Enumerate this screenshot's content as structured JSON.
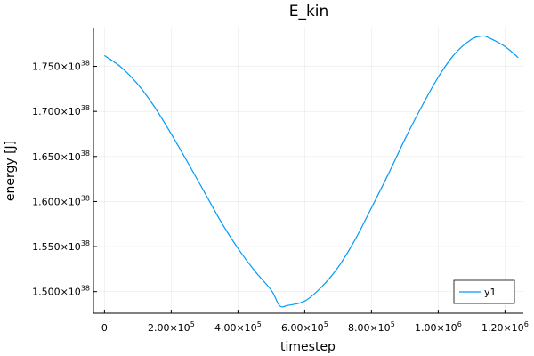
{
  "chart_data": {
    "type": "line",
    "title": "E_kin",
    "xlabel": "timestep",
    "ylabel": "energy [J]",
    "xlim": [
      -33000,
      1255000
    ],
    "ylim": [
      1.476e+38,
      1.793e+38
    ],
    "grid": true,
    "legend_position": "bottom-right",
    "x_ticks": [
      {
        "value": 0,
        "mantissa": "0",
        "exponent": ""
      },
      {
        "value": 200000,
        "mantissa": "2.00×10",
        "exponent": "5"
      },
      {
        "value": 400000,
        "mantissa": "4.00×10",
        "exponent": "5"
      },
      {
        "value": 600000,
        "mantissa": "6.00×10",
        "exponent": "5"
      },
      {
        "value": 800000,
        "mantissa": "8.00×10",
        "exponent": "5"
      },
      {
        "value": 1000000,
        "mantissa": "1.00×10",
        "exponent": "6"
      },
      {
        "value": 1200000,
        "mantissa": "1.20×10",
        "exponent": "6"
      }
    ],
    "y_ticks": [
      {
        "value": 1.5e+38,
        "mantissa": "1.500×10",
        "exponent": "38"
      },
      {
        "value": 1.55e+38,
        "mantissa": "1.550×10",
        "exponent": "38"
      },
      {
        "value": 1.6e+38,
        "mantissa": "1.600×10",
        "exponent": "38"
      },
      {
        "value": 1.65e+38,
        "mantissa": "1.650×10",
        "exponent": "38"
      },
      {
        "value": 1.7e+38,
        "mantissa": "1.700×10",
        "exponent": "38"
      },
      {
        "value": 1.75e+38,
        "mantissa": "1.750×10",
        "exponent": "38"
      }
    ],
    "series": [
      {
        "name": "y1",
        "color": "#009af9",
        "x": [
          0,
          50000,
          100000,
          150000,
          200000,
          250000,
          300000,
          350000,
          400000,
          450000,
          500000,
          525000,
          550000,
          600000,
          650000,
          700000,
          750000,
          800000,
          850000,
          900000,
          950000,
          1000000,
          1050000,
          1100000,
          1130000,
          1150000,
          1200000,
          1240000
        ],
        "y": [
          1.762e+38,
          1.749e+38,
          1.73e+38,
          1.705e+38,
          1.675e+38,
          1.643e+38,
          1.61e+38,
          1.577e+38,
          1.548e+38,
          1.523e+38,
          1.5015e+38,
          1.4843e+38,
          1.4848e+38,
          1.4895e+38,
          1.505e+38,
          1.527e+38,
          1.557e+38,
          1.593e+38,
          1.63e+38,
          1.669e+38,
          1.705e+38,
          1.738e+38,
          1.764e+38,
          1.78e+38,
          1.7835e+38,
          1.782e+38,
          1.772e+38,
          1.7595e+38
        ]
      }
    ]
  }
}
